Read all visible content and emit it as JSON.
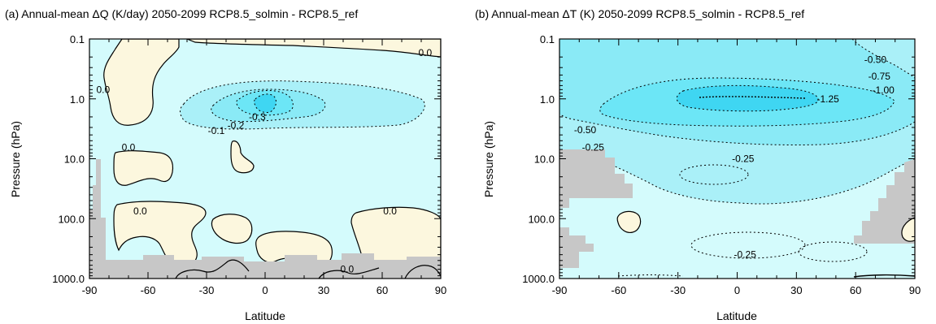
{
  "chart_data": [
    {
      "type": "contour",
      "title": "(a) Annual-mean ΔQ (K/day) 2050-2099 RCP8.5_solmin - RCP8.5_ref",
      "xlabel": "Latitude",
      "ylabel": "Pressure (hPa)",
      "xlim": [
        -90,
        90
      ],
      "ylim": [
        1000,
        0.1
      ],
      "y_scale": "log",
      "x_ticks": [
        "-90",
        "-60",
        "-30",
        "0",
        "30",
        "60",
        "90"
      ],
      "y_ticks": [
        "0.1",
        "1.0",
        "10.0",
        "100.0",
        "1000.0"
      ],
      "contour_levels": [
        {
          "label": "0.0",
          "value": 0.0,
          "style": "solid"
        },
        {
          "label": "-0.1",
          "value": -0.1,
          "style": "dotted"
        },
        {
          "label": "-0.2",
          "value": -0.2,
          "style": "dotted"
        },
        {
          "label": "-0.3",
          "value": -0.3,
          "style": "dotted"
        }
      ],
      "contour_labels": [
        {
          "text": "0.0",
          "lat": 82,
          "p": 0.17
        },
        {
          "text": "0.0",
          "lat": -83,
          "p": 0.7
        },
        {
          "text": "-0.1",
          "lat": -25,
          "p": 3.4
        },
        {
          "text": "-0.2",
          "lat": -15,
          "p": 2.8
        },
        {
          "text": "-0.3",
          "lat": -4,
          "p": 2.0
        },
        {
          "text": "0.0",
          "lat": -70,
          "p": 6.5
        },
        {
          "text": "0.0",
          "lat": -64,
          "p": 75
        },
        {
          "text": "0.0",
          "lat": 64,
          "p": 75
        },
        {
          "text": "0.0",
          "lat": 42,
          "p": 700
        }
      ]
    },
    {
      "type": "contour",
      "title": "(b) Annual-mean ΔT (K) 2050-2099 RCP8.5_solmin - RCP8.5_ref",
      "xlabel": "Latitude",
      "ylabel": "Pressure (hPa)",
      "xlim": [
        -90,
        90
      ],
      "ylim": [
        1000,
        0.1
      ],
      "y_scale": "log",
      "x_ticks": [
        "-90",
        "-60",
        "-30",
        "0",
        "30",
        "60",
        "90"
      ],
      "y_ticks": [
        "0.1",
        "1.0",
        "10.0",
        "100.0",
        "1000.0"
      ],
      "contour_levels": [
        {
          "label": "-0.25",
          "value": -0.25,
          "style": "dotted"
        },
        {
          "label": "-0.50",
          "value": -0.5,
          "style": "dotted"
        },
        {
          "label": "-0.75",
          "value": -0.75,
          "style": "dotted"
        },
        {
          "label": "-1.00",
          "value": -1.0,
          "style": "dotted"
        },
        {
          "label": "-1.25",
          "value": -1.25,
          "style": "dotted"
        }
      ],
      "contour_labels": [
        {
          "text": "-0.50",
          "lat": 70,
          "p": 0.22
        },
        {
          "text": "-0.75",
          "lat": 72,
          "p": 0.42
        },
        {
          "text": "-1.00",
          "lat": 74,
          "p": 0.72
        },
        {
          "text": "-1.25",
          "lat": 46,
          "p": 1.0
        },
        {
          "text": "-0.50",
          "lat": -77,
          "p": 3.3
        },
        {
          "text": "-0.25",
          "lat": -73,
          "p": 6.5
        },
        {
          "text": "-0.25",
          "lat": 3,
          "p": 10.0
        },
        {
          "text": "-0.25",
          "lat": 4,
          "p": 400
        }
      ]
    }
  ],
  "colors": {
    "negative_0_to_0p1": "#d4fbfc",
    "negative_0p1_to_0p2": "#aaf0f8",
    "negative_0p2_to_0p3": "#6ce6f6",
    "negative_strongest": "#3fd6f2",
    "positive": "#fcf7de",
    "missing": "#c7c7c7"
  }
}
